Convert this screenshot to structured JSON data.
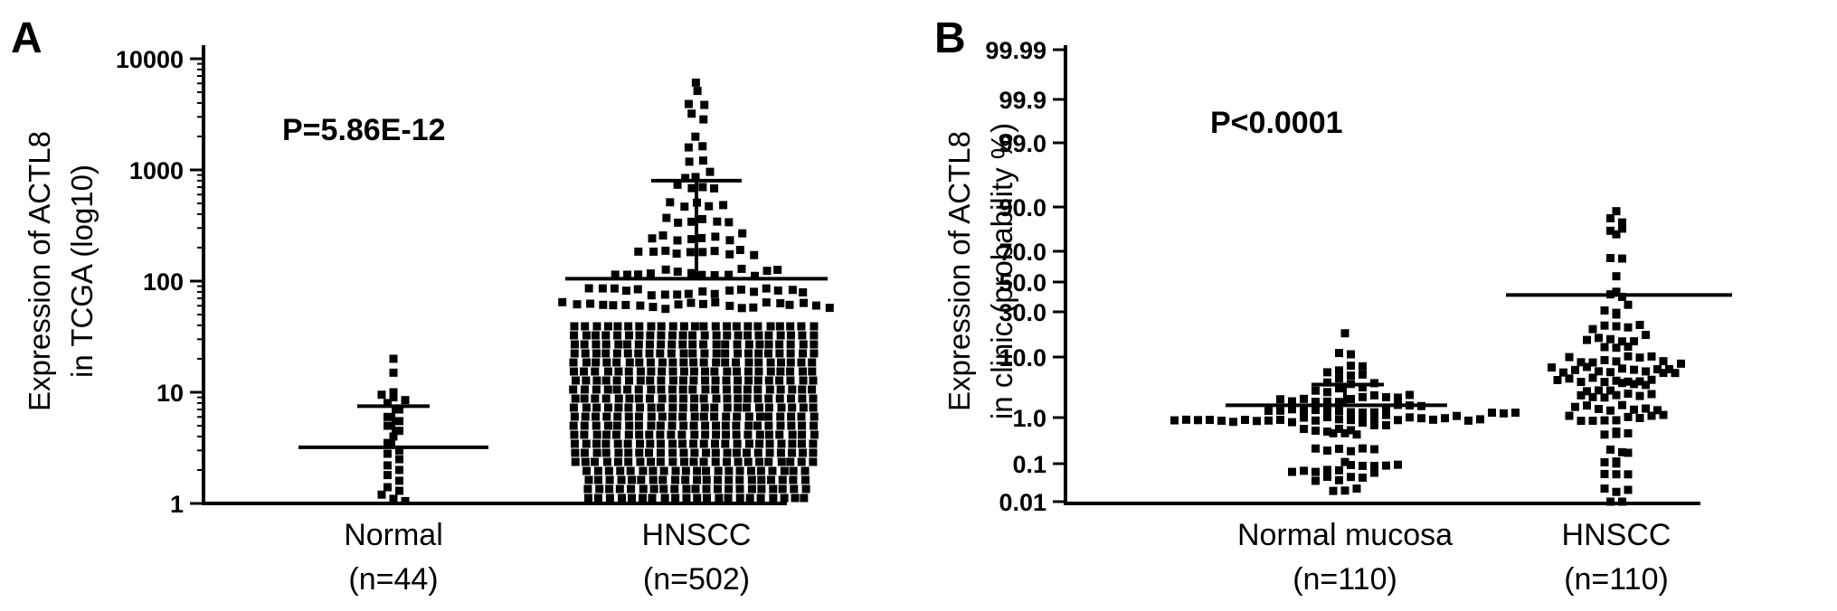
{
  "chart_data": [
    {
      "panel": "A",
      "type": "scatter",
      "subtype": "dot plot with mean and SD",
      "ylabel_line1": "Expression of ACTL8",
      "ylabel_line2": "in TCGA (log10)",
      "yscale": "log10",
      "ylim": [
        1,
        10000
      ],
      "yticks": [
        "10000",
        "1000",
        "100",
        "10",
        "1"
      ],
      "annotation": "P=5.86E-12",
      "groups": [
        {
          "name": "Normal",
          "n_label": "(n=44)",
          "n": 44,
          "mean": 3.2,
          "sd_upper": 7.5,
          "min": 1.05,
          "max": 20,
          "points": [
            20,
            15,
            10,
            9.5,
            9,
            8.5,
            8,
            7,
            6,
            5.5,
            5,
            4.5,
            4,
            3.5,
            3,
            2.8,
            2.5,
            2.2,
            2,
            1.8,
            1.6,
            1.4,
            1.3,
            1.2,
            1.1,
            1.05
          ]
        },
        {
          "name": "HNSCC",
          "n_label": "(n=502)",
          "n": 502,
          "mean": 105,
          "sd_upper": 800,
          "min": 1.0,
          "max": 6000
        }
      ]
    },
    {
      "panel": "B",
      "type": "scatter",
      "subtype": "dot plot with mean and SD",
      "ylabel_line1": "Expression of ACTL8",
      "ylabel_line2": "in clinic (probability %)",
      "yscale": "probability",
      "yticks": [
        "99.99",
        "99.9",
        "99.0",
        "90.0",
        "70.0",
        "50.0",
        "30.0",
        "10.0",
        "1.0",
        "0.1",
        "0.01"
      ],
      "annotation": "P<0.0001",
      "groups": [
        {
          "name": "Normal mucosa",
          "n_label": "(n=110)",
          "n": 110,
          "mean": 1.6,
          "sd_upper": 3.5,
          "min": 0.02,
          "max": 20
        },
        {
          "name": "HNSCC",
          "n_label": "(n=110)",
          "n": 110,
          "mean": 40,
          "min": 0.01,
          "max": 90
        }
      ]
    }
  ],
  "panels": {
    "a": {
      "letter": "A",
      "annotation": "P=5.86E-12",
      "ylabel_line1": "Expression of ACTL8",
      "ylabel_line2": "in TCGA (log10)",
      "ticks": [
        "10000",
        "1000",
        "100",
        "10",
        "1"
      ],
      "cat1": "Normal",
      "cat1_n": "(n=44)",
      "cat2": "HNSCC",
      "cat2_n": "(n=502)"
    },
    "b": {
      "letter": "B",
      "annotation": "P<0.0001",
      "ylabel_line1": "Expression of ACTL8",
      "ylabel_line2": "in clinic (probability %)",
      "ticks": [
        "99.99",
        "99.9",
        "99.0",
        "90.0",
        "70.0",
        "50.0",
        "30.0",
        "10.0",
        "1.0",
        "0.1",
        "0.01"
      ],
      "cat1": "Normal mucosa",
      "cat1_n": "(n=110)",
      "cat2": "HNSCC",
      "cat2_n": "(n=110)"
    }
  }
}
